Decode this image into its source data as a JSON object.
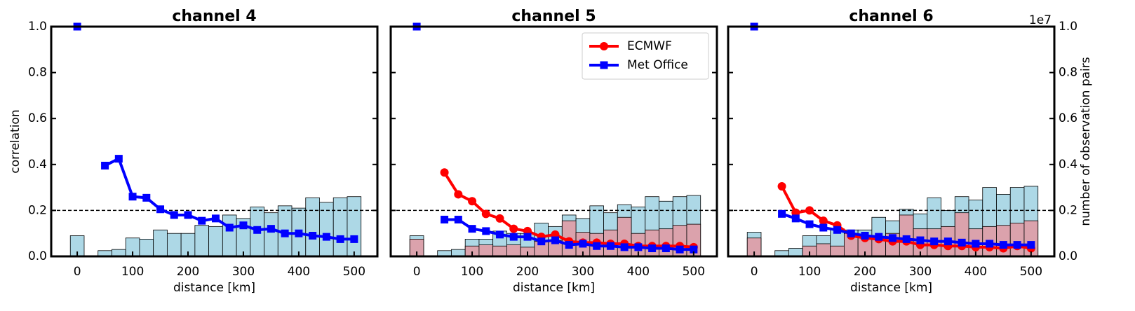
{
  "chart_data": [
    {
      "type": "line",
      "title": "channel 4",
      "xlabel": "distance [km]",
      "ylabel": "correlation",
      "xlim": [
        -47,
        542
      ],
      "xticks": [
        0,
        100,
        200,
        300,
        400,
        500
      ],
      "ylim": [
        0,
        1
      ],
      "yticks": [
        {
          "value": 0,
          "label": "0.0"
        },
        {
          "value": 0.2,
          "label": "0.2"
        },
        {
          "value": 0.4,
          "label": "0.4"
        },
        {
          "value": 0.6,
          "label": "0.6"
        },
        {
          "value": 0.8,
          "label": "0.8"
        },
        {
          "value": 1,
          "label": "1.0"
        }
      ],
      "y2lim": [
        0,
        1
      ],
      "hline": 0.2,
      "bins": [
        -12.5,
        12.5,
        37.5,
        62.5,
        87.5,
        112.5,
        137.5,
        162.5,
        187.5,
        212.5,
        237.5,
        262.5,
        287.5,
        312.5,
        337.5,
        362.5,
        387.5,
        412.5,
        437.5,
        462.5,
        487.5,
        512.5
      ],
      "histograms": [
        {
          "color": "#add8e6",
          "counts": [
            0.09,
            0,
            0.025,
            0.03,
            0.08,
            0.075,
            0.115,
            0.1,
            0.1,
            0.135,
            0.13,
            0.18,
            0.165,
            0.215,
            0.19,
            0.22,
            0.21,
            0.255,
            0.235,
            0.255,
            0.26
          ]
        }
      ],
      "x": [
        0,
        25,
        50,
        75,
        100,
        125,
        150,
        175,
        200,
        225,
        250,
        275,
        300,
        325,
        350,
        375,
        400,
        425,
        450,
        475,
        500
      ],
      "series": [
        {
          "name": "Met Office",
          "color": "#0000ff",
          "marker": "square",
          "values": [
            1.0,
            null,
            0.395,
            0.425,
            0.26,
            0.255,
            0.205,
            0.18,
            0.18,
            0.155,
            0.165,
            0.125,
            0.135,
            0.115,
            0.12,
            0.1,
            0.1,
            0.09,
            0.085,
            0.075,
            0.075
          ]
        }
      ]
    },
    {
      "type": "line",
      "title": "channel 5",
      "xlabel": "distance [km]",
      "xlim": [
        -47,
        542
      ],
      "xticks": [
        0,
        100,
        200,
        300,
        400,
        500
      ],
      "ylim": [
        0,
        1
      ],
      "y2lim": [
        0,
        1
      ],
      "hline": 0.2,
      "legend": "upper right",
      "bins": [
        -12.5,
        12.5,
        37.5,
        62.5,
        87.5,
        112.5,
        137.5,
        162.5,
        187.5,
        212.5,
        237.5,
        262.5,
        287.5,
        312.5,
        337.5,
        362.5,
        387.5,
        412.5,
        437.5,
        462.5,
        487.5,
        512.5
      ],
      "histograms": [
        {
          "color": "#add8e6",
          "counts": [
            0.09,
            0,
            0.025,
            0.03,
            0.075,
            0.075,
            0.11,
            0.1,
            0.1,
            0.145,
            0.13,
            0.18,
            0.165,
            0.22,
            0.19,
            0.225,
            0.215,
            0.26,
            0.24,
            0.26,
            0.265
          ]
        },
        {
          "color": "#dba2ac",
          "counts": [
            0.075,
            0,
            0,
            0,
            0.045,
            0.05,
            0.045,
            0.05,
            0.04,
            0.065,
            0.07,
            0.155,
            0.105,
            0.1,
            0.115,
            0.17,
            0.1,
            0.115,
            0.12,
            0.135,
            0.14
          ]
        }
      ],
      "x": [
        0,
        25,
        50,
        75,
        100,
        125,
        150,
        175,
        200,
        225,
        250,
        275,
        300,
        325,
        350,
        375,
        400,
        425,
        450,
        475,
        500
      ],
      "series": [
        {
          "name": "ECMWF",
          "color": "#ff0000",
          "marker": "circle",
          "values": [
            null,
            null,
            0.365,
            0.27,
            0.24,
            0.185,
            0.165,
            0.12,
            0.11,
            0.085,
            0.095,
            0.065,
            0.06,
            0.06,
            0.055,
            0.055,
            0.045,
            0.045,
            0.045,
            0.045,
            0.04
          ]
        },
        {
          "name": "Met Office",
          "color": "#0000ff",
          "marker": "square",
          "values": [
            1.0,
            null,
            0.16,
            0.16,
            0.12,
            0.11,
            0.095,
            0.085,
            0.085,
            0.065,
            0.07,
            0.05,
            0.055,
            0.045,
            0.045,
            0.04,
            0.04,
            0.035,
            0.035,
            0.03,
            0.03
          ]
        }
      ]
    },
    {
      "type": "line",
      "title": "channel 6",
      "xlabel": "distance [km]",
      "y2label": "number of observation pairs",
      "y2offset": "1e7",
      "xlim": [
        -47,
        542
      ],
      "xticks": [
        0,
        100,
        200,
        300,
        400,
        500
      ],
      "ylim": [
        0,
        1
      ],
      "y2lim": [
        0,
        1
      ],
      "y2ticks": [
        {
          "value": 0,
          "label": "0.0"
        },
        {
          "value": 0.2,
          "label": "0.2"
        },
        {
          "value": 0.4,
          "label": "0.4"
        },
        {
          "value": 0.6,
          "label": "0.6"
        },
        {
          "value": 0.8,
          "label": "0.8"
        },
        {
          "value": 1,
          "label": "1.0"
        }
      ],
      "hline": 0.2,
      "bins": [
        -12.5,
        12.5,
        37.5,
        62.5,
        87.5,
        112.5,
        137.5,
        162.5,
        187.5,
        212.5,
        237.5,
        262.5,
        287.5,
        312.5,
        337.5,
        362.5,
        387.5,
        412.5,
        437.5,
        462.5,
        487.5,
        512.5
      ],
      "histograms": [
        {
          "color": "#add8e6",
          "counts": [
            0.105,
            0,
            0.025,
            0.035,
            0.09,
            0.09,
            0.12,
            0.115,
            0.115,
            0.17,
            0.155,
            0.205,
            0.185,
            0.255,
            0.2,
            0.26,
            0.245,
            0.3,
            0.27,
            0.3,
            0.305
          ]
        },
        {
          "color": "#dba2ac",
          "counts": [
            0.08,
            0,
            0,
            0,
            0.045,
            0.055,
            0.045,
            0.1,
            0.085,
            0.085,
            0.1,
            0.18,
            0.12,
            0.12,
            0.13,
            0.19,
            0.12,
            0.13,
            0.135,
            0.145,
            0.155
          ]
        }
      ],
      "x": [
        0,
        25,
        50,
        75,
        100,
        125,
        150,
        175,
        200,
        225,
        250,
        275,
        300,
        325,
        350,
        375,
        400,
        425,
        450,
        475,
        500
      ],
      "series": [
        {
          "name": "ECMWF",
          "color": "#ff0000",
          "marker": "circle",
          "values": [
            null,
            null,
            0.305,
            0.19,
            0.2,
            0.155,
            0.135,
            0.09,
            0.08,
            0.075,
            0.065,
            0.065,
            0.05,
            0.05,
            0.045,
            0.045,
            0.04,
            0.04,
            0.035,
            0.045,
            0.035
          ]
        },
        {
          "name": "Met Office",
          "color": "#0000ff",
          "marker": "square",
          "values": [
            1.0,
            null,
            0.185,
            0.165,
            0.14,
            0.125,
            0.115,
            0.1,
            0.09,
            0.085,
            0.08,
            0.075,
            0.07,
            0.065,
            0.065,
            0.06,
            0.055,
            0.055,
            0.05,
            0.05,
            0.05
          ]
        }
      ]
    }
  ]
}
